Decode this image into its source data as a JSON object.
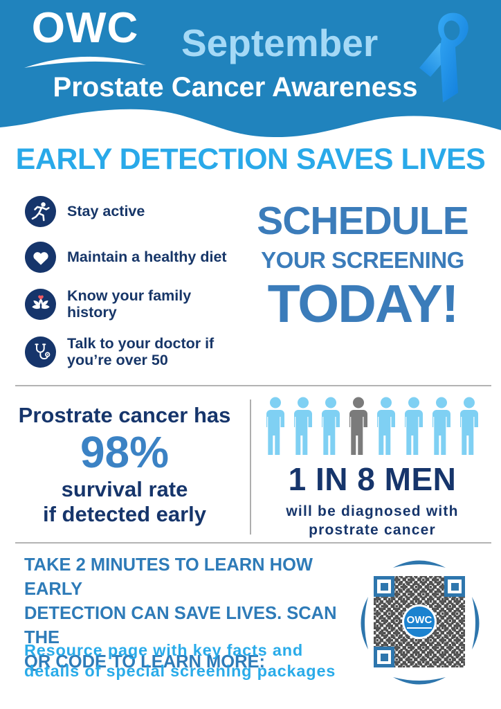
{
  "header": {
    "logo": "OWC",
    "month": "September",
    "title": "Prostate Cancer Awareness",
    "ribbon_icon": "blue-awareness-ribbon"
  },
  "headline": "EARLY DETECTION SAVES LIVES",
  "tips": [
    {
      "icon": "runner-icon",
      "label": "Stay active"
    },
    {
      "icon": "heart-icon",
      "label": "Maintain a healthy diet"
    },
    {
      "icon": "family-icon",
      "label": "Know your family history"
    },
    {
      "icon": "stethoscope-icon",
      "label": "Talk to your doctor if you’re over 50"
    }
  ],
  "cta": {
    "line1": "SCHEDULE",
    "line2": "YOUR SCREENING",
    "line3": "TODAY!"
  },
  "stat_survival": {
    "intro": "Prostrate cancer has",
    "value": "98%",
    "caption_line1": "survival rate",
    "caption_line2": "if detected early"
  },
  "stat_incidence": {
    "figures_total": 8,
    "highlighted_figure": 4,
    "headline": "1 IN 8 MEN",
    "caption_line1": "will be diagnosed with",
    "caption_line2": "prostrate cancer"
  },
  "footer": {
    "cta_lines": [
      "TAKE 2 MINUTES TO LEARN HOW EARLY",
      "DETECTION  CAN SAVE LIVES. SCAN THE",
      "QR CODE TO LEARN MORE:"
    ],
    "resource_line1": "Resource page with key facts and",
    "resource_line2": "details of special screening packages",
    "qr_center_logo": "OWC"
  },
  "colors": {
    "header_blue": "#2083bd",
    "month_light_blue": "#a5d9f6",
    "headline_azure": "#29a9e9",
    "cta_blue": "#3b7cba",
    "navy_text": "#16356b",
    "stat_value_blue": "#3b82c4",
    "figure_light_blue": "#7fd0f3",
    "figure_gray": "#7b7b7b",
    "footer_blue": "#2e7bb8",
    "resource_azure": "#29abe9",
    "qr_accent_blue": "#2e76ad"
  }
}
